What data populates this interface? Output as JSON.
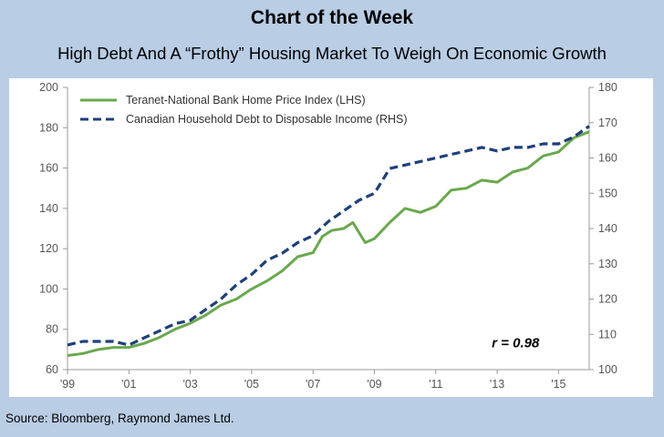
{
  "title": "Chart of the Week",
  "subtitle": "High Debt And A “Frothy” Housing Market To Weigh On Economic Growth",
  "source": "Source: Bloomberg, Raymond James Ltd.",
  "chart_data": {
    "type": "line",
    "x_ticks": [
      "'99",
      "'01",
      "'03",
      "'05",
      "'07",
      "'09",
      "'11",
      "'13",
      "'15"
    ],
    "x_tick_years": [
      1999,
      2001,
      2003,
      2005,
      2007,
      2009,
      2011,
      2013,
      2015
    ],
    "xlim": [
      1999,
      2016
    ],
    "y_left": {
      "ticks": [
        "60",
        "80",
        "100",
        "120",
        "140",
        "160",
        "180",
        "200"
      ],
      "ylim": [
        60,
        200
      ]
    },
    "y_right": {
      "ticks": [
        "100",
        "110",
        "120",
        "130",
        "140",
        "150",
        "160",
        "170",
        "180"
      ],
      "ylim": [
        100,
        180
      ]
    },
    "annotation": "r = 0.98",
    "legend_position": "top-left",
    "series": [
      {
        "name": "Teranet-National Bank Home Price Index (LHS)",
        "axis": "left",
        "color": "#6aa84f",
        "style": "solid",
        "x": [
          1999.0,
          1999.5,
          2000.0,
          2000.5,
          2001.0,
          2001.5,
          2002.0,
          2002.5,
          2003.0,
          2003.5,
          2004.0,
          2004.5,
          2005.0,
          2005.5,
          2006.0,
          2006.5,
          2007.0,
          2007.3,
          2007.6,
          2008.0,
          2008.3,
          2008.7,
          2009.0,
          2009.5,
          2010.0,
          2010.5,
          2011.0,
          2011.5,
          2012.0,
          2012.5,
          2013.0,
          2013.5,
          2014.0,
          2014.5,
          2015.0,
          2015.5,
          2016.0
        ],
        "y": [
          67,
          68,
          70,
          71,
          71,
          73,
          76,
          80,
          83,
          87,
          92,
          95,
          100,
          104,
          109,
          116,
          118,
          126,
          129,
          130,
          133,
          123,
          125,
          133,
          140,
          138,
          141,
          149,
          150,
          154,
          153,
          158,
          160,
          166,
          168,
          175,
          178
        ]
      },
      {
        "name": "Canadian Household Debt to Disposable Income (RHS)",
        "axis": "right",
        "color": "#1f3f7a",
        "style": "dashed",
        "x": [
          1999.0,
          1999.5,
          2000.0,
          2000.5,
          2001.0,
          2001.5,
          2002.0,
          2002.5,
          2003.0,
          2003.5,
          2004.0,
          2004.5,
          2005.0,
          2005.5,
          2006.0,
          2006.5,
          2007.0,
          2007.5,
          2008.0,
          2008.5,
          2009.0,
          2009.5,
          2010.0,
          2010.5,
          2011.0,
          2011.5,
          2012.0,
          2012.5,
          2013.0,
          2013.5,
          2014.0,
          2014.5,
          2015.0,
          2015.5,
          2016.0
        ],
        "y": [
          107,
          108,
          108,
          108,
          107,
          109,
          111,
          113,
          114,
          117,
          120,
          124,
          127,
          131,
          133,
          136,
          138,
          142,
          145,
          148,
          150,
          157,
          158,
          159,
          160,
          161,
          162,
          163,
          162,
          163,
          163,
          164,
          164,
          166,
          169
        ]
      }
    ]
  }
}
